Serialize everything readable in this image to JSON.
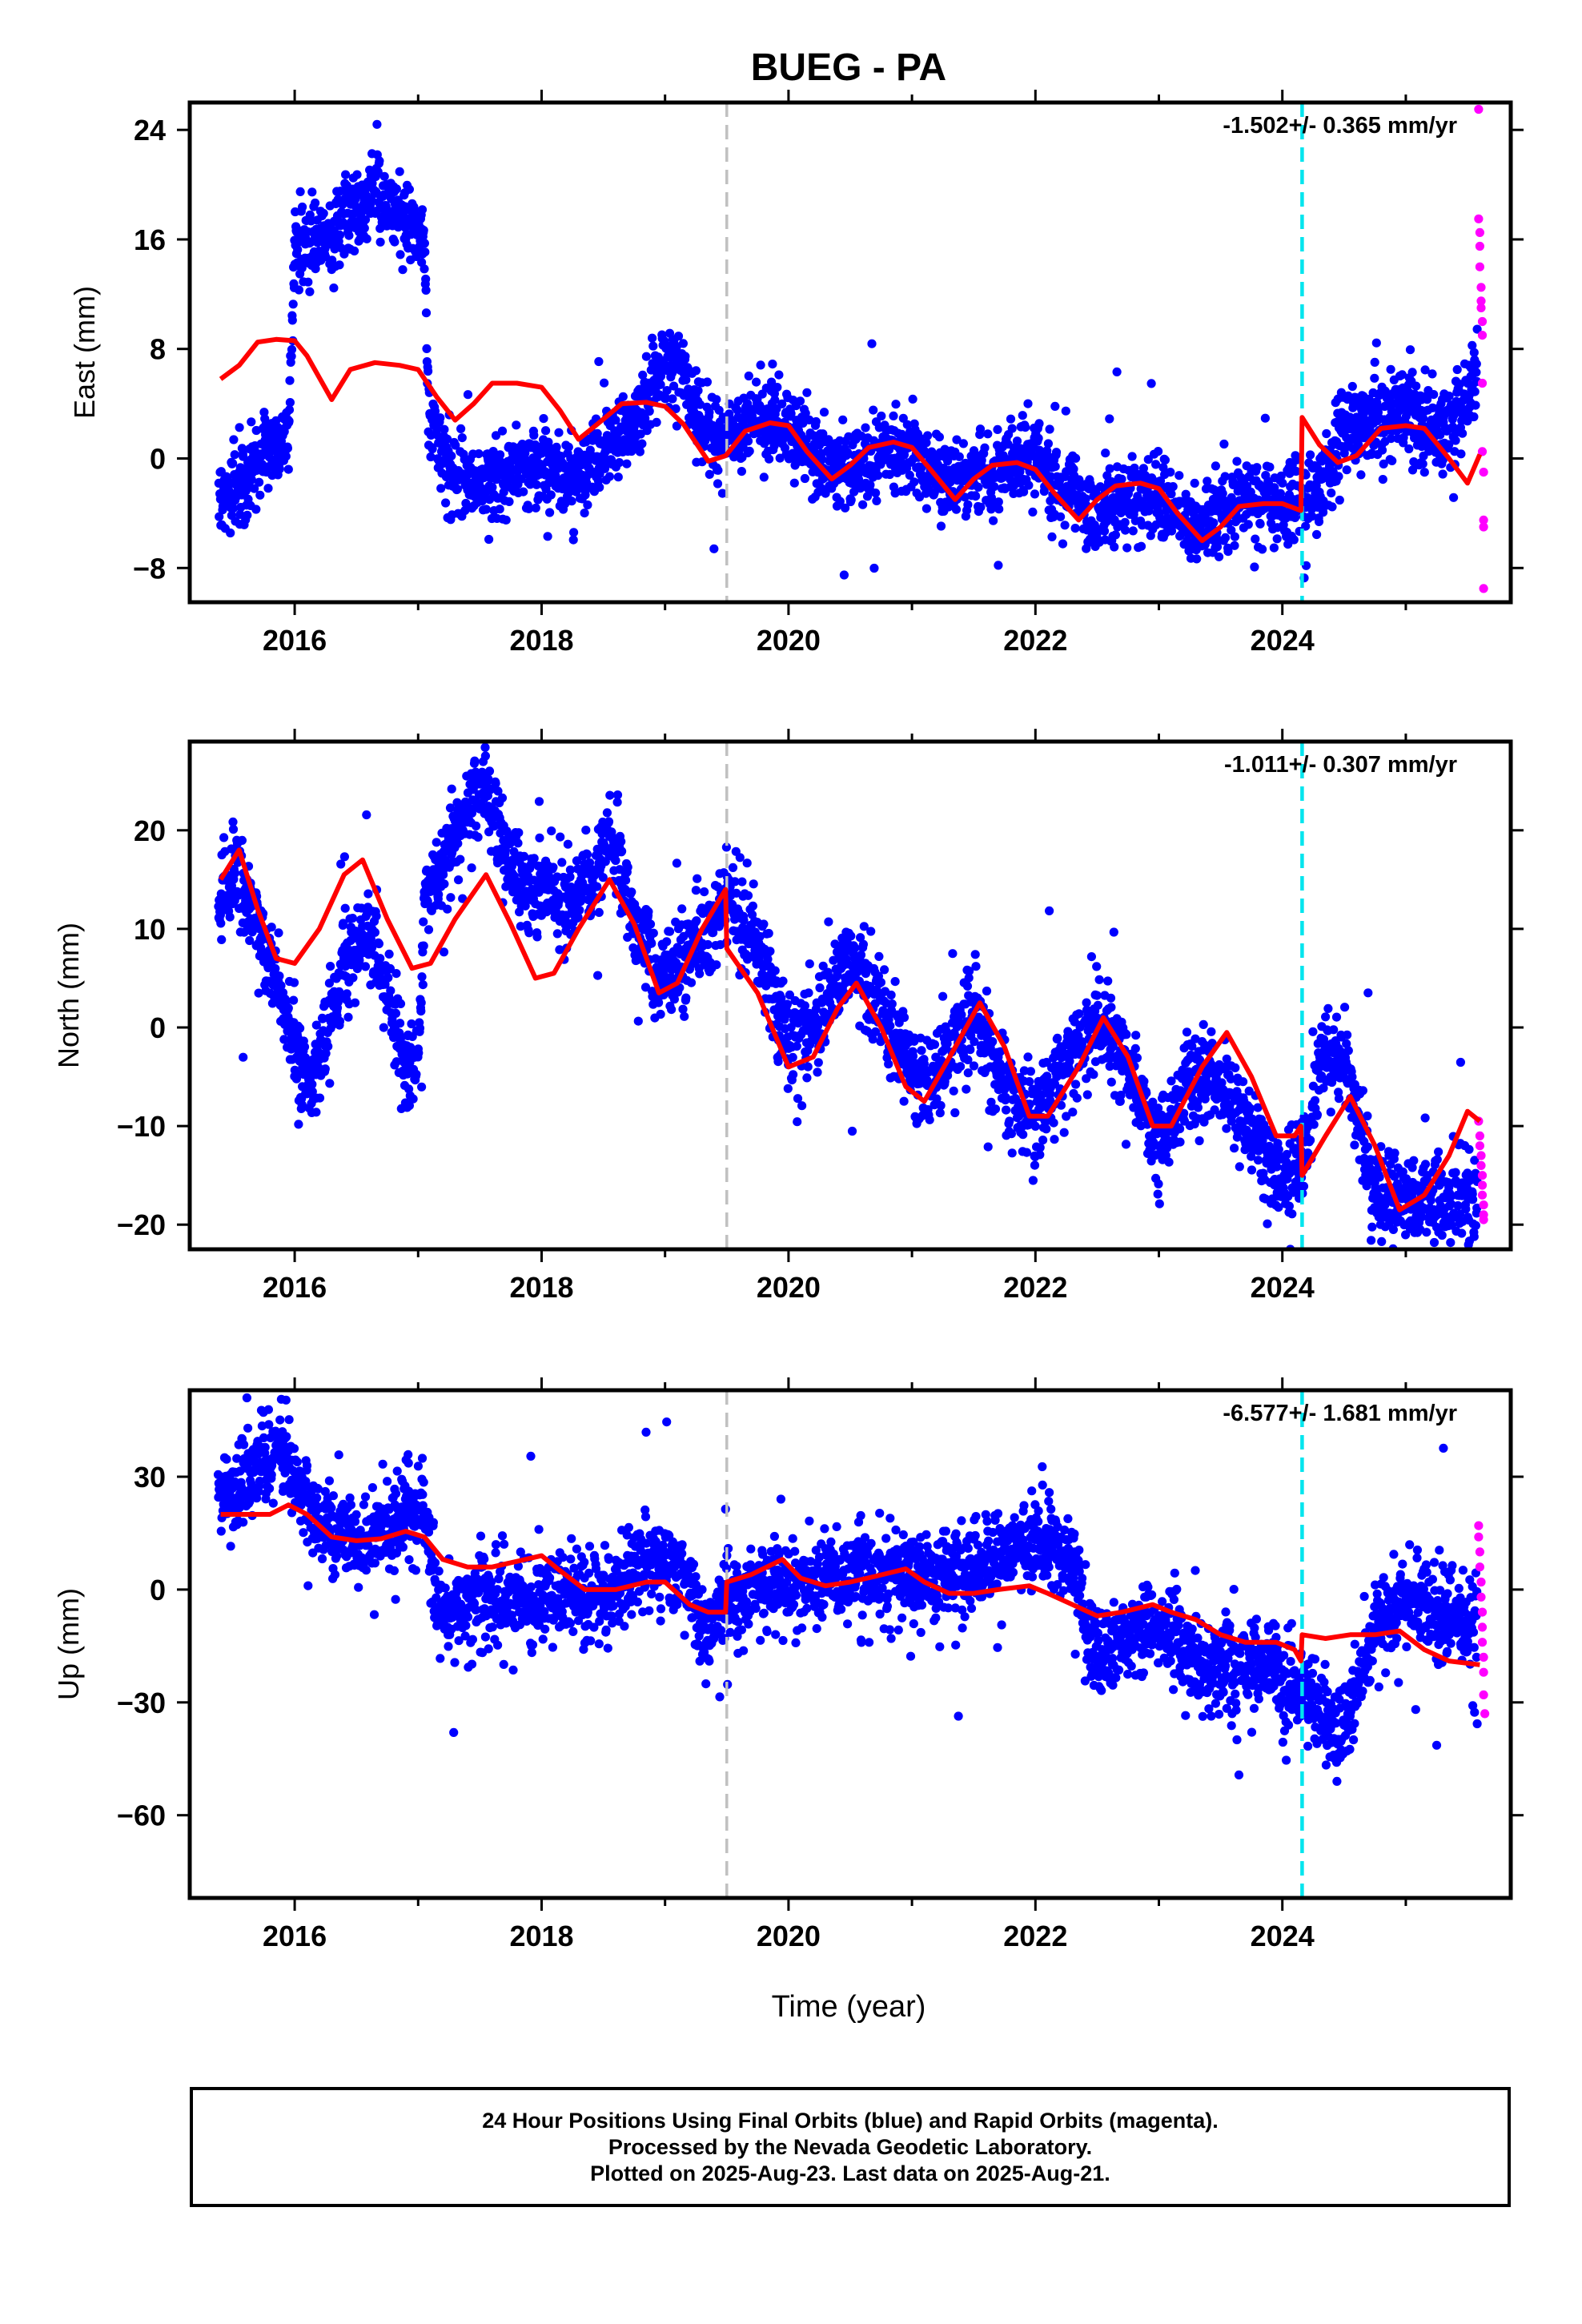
{
  "title": "BUEG - PA",
  "x_label": "Time (year)",
  "footer": {
    "line1": "24 Hour Positions Using Final Orbits (blue) and Rapid Orbits (magenta).",
    "line2": "Processed by the Nevada Geodetic Laboratory.",
    "line3": "Plotted on 2025-Aug-23. Last data on 2025-Aug-21."
  },
  "colors": {
    "final_orbits": "#0000ff",
    "rapid_orbits": "#ff00ff",
    "model_fit": "#ff0000",
    "antenna_change": "#c0c0c0",
    "equipment_change": "#00e5ee"
  },
  "chart_data": [
    {
      "type": "scatter",
      "component": "east",
      "ylabel": "East (mm)",
      "rate_text": "-1.502+/- 0.365 mm/yr",
      "xlim": [
        2015.15,
        2025.85
      ],
      "ylim": [
        -10.5,
        26
      ],
      "yticks": [
        -8,
        0,
        8,
        16,
        24
      ],
      "xticks": [
        2016,
        2018,
        2020,
        2022,
        2024
      ],
      "vlines": [
        {
          "x": 2019.5,
          "kind": "antenna_change"
        },
        {
          "x": 2024.16,
          "kind": "equipment_change"
        }
      ],
      "final_orbits_profile": {
        "x": [
          2015.38,
          2015.55,
          2015.75,
          2015.95,
          2016.0,
          2016.1,
          2016.3,
          2016.5,
          2016.65,
          2016.85,
          2017.05,
          2017.08,
          2017.25,
          2017.5,
          2017.75,
          2018.0,
          2018.25,
          2018.5,
          2018.75,
          2019.0,
          2019.15,
          2019.3,
          2019.5,
          2019.75,
          2020.0,
          2020.25,
          2020.5,
          2020.75,
          2021.0,
          2021.25,
          2021.5,
          2021.75,
          2022.0,
          2022.25,
          2022.5,
          2022.75,
          2023.0,
          2023.25,
          2023.5,
          2023.75,
          2024.0,
          2024.16,
          2024.3,
          2024.5,
          2024.75,
          2025.0,
          2025.25,
          2025.5,
          2025.58
        ],
        "y": [
          -3,
          -2,
          0.5,
          1,
          15,
          16,
          16.5,
          18,
          19.5,
          18,
          16,
          3.5,
          -1,
          -2,
          -1,
          -0.5,
          -1.5,
          0.5,
          3,
          7,
          7,
          2,
          1,
          3,
          2.5,
          0,
          -1,
          0.5,
          0.5,
          -1.5,
          -1,
          -0.5,
          0.5,
          -2.5,
          -4,
          -3,
          -2.5,
          -5.5,
          -4,
          -3,
          -3,
          -3.5,
          -2,
          2,
          3,
          3.5,
          2,
          4,
          7.5
        ],
        "spread": 1.8
      },
      "rapid_orbits": {
        "x": [
          2025.59,
          2025.59,
          2025.6,
          2025.6,
          2025.6,
          2025.61,
          2025.61,
          2025.61,
          2025.62,
          2025.62,
          2025.62,
          2025.62,
          2025.63,
          2025.63,
          2025.63,
          2025.63
        ],
        "y": [
          25.5,
          17.5,
          16.5,
          15.5,
          14,
          12.5,
          11.5,
          11,
          10,
          9,
          5.5,
          0.5,
          -1,
          -4.5,
          -5,
          -9.5
        ]
      },
      "model_fit": {
        "x": [
          2015.4,
          2015.55,
          2015.7,
          2015.85,
          2016.0,
          2016.1,
          2016.3,
          2016.45,
          2016.65,
          2016.85,
          2017.0,
          2017.15,
          2017.3,
          2017.45,
          2017.6,
          2017.8,
          2018.0,
          2018.15,
          2018.3,
          2018.45,
          2018.65,
          2018.85,
          2019.0,
          2019.15,
          2019.35,
          2019.49,
          2019.5,
          2019.65,
          2019.85,
          2020.0,
          2020.15,
          2020.35,
          2020.5,
          2020.65,
          2020.85,
          2021.0,
          2021.15,
          2021.35,
          2021.5,
          2021.65,
          2021.85,
          2022.0,
          2022.15,
          2022.35,
          2022.5,
          2022.65,
          2022.85,
          2023.0,
          2023.15,
          2023.35,
          2023.5,
          2023.65,
          2023.85,
          2024.0,
          2024.15,
          2024.16,
          2024.3,
          2024.45,
          2024.6,
          2024.8,
          2025.0,
          2025.15,
          2025.35,
          2025.5,
          2025.6
        ],
        "y": [
          5.8,
          6.8,
          8.5,
          8.7,
          8.6,
          7.5,
          4.3,
          6.5,
          7,
          6.8,
          6.5,
          4.5,
          2.8,
          4,
          5.5,
          5.5,
          5.2,
          3.5,
          1.4,
          2.5,
          4,
          4.1,
          3.8,
          2.5,
          -0.2,
          0.2,
          0.3,
          2,
          2.6,
          2.4,
          0.5,
          -1.5,
          -0.5,
          0.8,
          1.2,
          0.8,
          -0.8,
          -3,
          -1.5,
          -0.5,
          -0.3,
          -0.8,
          -2.5,
          -4.5,
          -3,
          -2,
          -1.8,
          -2.2,
          -4,
          -6,
          -5,
          -3.5,
          -3.3,
          -3.3,
          -3.8,
          3,
          1,
          -0.3,
          0.2,
          2.2,
          2.4,
          2.2,
          0,
          -1.8,
          0.3
        ]
      }
    },
    {
      "type": "scatter",
      "component": "north",
      "ylabel": "North (mm)",
      "rate_text": "-1.011+/- 0.307 mm/yr",
      "xlim": [
        2015.15,
        2025.85
      ],
      "ylim": [
        -22.5,
        29
      ],
      "yticks": [
        -20,
        -10,
        0,
        10,
        20
      ],
      "xticks": [
        2016,
        2018,
        2020,
        2022,
        2024
      ],
      "vlines": [
        {
          "x": 2019.5,
          "kind": "antenna_change"
        },
        {
          "x": 2024.16,
          "kind": "equipment_change"
        }
      ],
      "final_orbits_profile": {
        "x": [
          2015.38,
          2015.5,
          2015.7,
          2015.9,
          2016.0,
          2016.15,
          2016.4,
          2016.6,
          2016.75,
          2016.9,
          2017.0,
          2017.05,
          2017.25,
          2017.55,
          2017.75,
          2017.95,
          2018.2,
          2018.4,
          2018.55,
          2018.75,
          2018.95,
          2019.15,
          2019.35,
          2019.5,
          2019.75,
          2020.0,
          2020.25,
          2020.5,
          2020.75,
          2021.0,
          2021.25,
          2021.5,
          2021.75,
          2022.0,
          2022.25,
          2022.5,
          2022.75,
          2023.0,
          2023.25,
          2023.5,
          2023.75,
          2024.0,
          2024.16,
          2024.3,
          2024.5,
          2024.75,
          2025.0,
          2025.25,
          2025.5,
          2025.58
        ],
        "y": [
          12,
          16,
          10,
          3,
          -3,
          -5,
          6,
          10,
          4,
          -3,
          -4,
          13,
          18,
          25,
          16,
          14,
          13,
          14,
          20,
          11,
          5,
          7,
          10,
          14,
          8,
          -1,
          1,
          6.5,
          2,
          -5,
          -4,
          2,
          -6,
          -9,
          -4,
          1,
          -4,
          -12,
          -5,
          -6,
          -10,
          -16,
          -14,
          -4,
          -3,
          -16,
          -18,
          -18,
          -17,
          -17
        ],
        "spread": 2.8
      },
      "rapid_orbits": {
        "x": [
          2025.59,
          2025.6,
          2025.6,
          2025.61,
          2025.61,
          2025.62,
          2025.62,
          2025.62,
          2025.63,
          2025.63,
          2025.63
        ],
        "y": [
          -9.5,
          -11,
          -12,
          -13,
          -14,
          -15,
          -16,
          -17,
          -18,
          -19,
          -19.5
        ]
      },
      "model_fit": {
        "x": [
          2015.4,
          2015.55,
          2015.7,
          2015.85,
          2016.0,
          2016.2,
          2016.4,
          2016.55,
          2016.75,
          2016.95,
          2017.1,
          2017.3,
          2017.55,
          2017.75,
          2017.95,
          2018.1,
          2018.3,
          2018.55,
          2018.75,
          2018.95,
          2019.1,
          2019.3,
          2019.49,
          2019.5,
          2019.75,
          2020.0,
          2020.2,
          2020.4,
          2020.55,
          2020.75,
          2020.95,
          2021.1,
          2021.35,
          2021.55,
          2021.75,
          2021.95,
          2022.1,
          2022.35,
          2022.55,
          2022.75,
          2022.95,
          2023.1,
          2023.35,
          2023.55,
          2023.75,
          2023.95,
          2024.1,
          2024.15,
          2024.16,
          2024.35,
          2024.55,
          2024.75,
          2024.95,
          2025.15,
          2025.35,
          2025.5,
          2025.6
        ],
        "y": [
          15,
          18,
          12,
          7,
          6.5,
          10,
          15.5,
          17,
          11,
          6,
          6.5,
          11,
          15.5,
          10.5,
          5,
          5.5,
          10,
          15,
          10.5,
          3.5,
          4.5,
          10,
          14,
          8,
          3.5,
          -4,
          -3,
          2,
          4.5,
          0,
          -6,
          -7.5,
          -2,
          2.5,
          -2,
          -9,
          -9,
          -4,
          1,
          -3,
          -10,
          -10,
          -4,
          -0.5,
          -5,
          -11,
          -11,
          -10,
          -15,
          -11,
          -7,
          -12,
          -18.5,
          -17,
          -13,
          -8.5,
          -9.5
        ]
      }
    },
    {
      "type": "scatter",
      "component": "up",
      "ylabel": "Up (mm)",
      "rate_text": "-6.577+/- 1.681 mm/yr",
      "xlim": [
        2015.15,
        2025.85
      ],
      "ylim": [
        -82,
        53
      ],
      "yticks": [
        -60,
        -30,
        0,
        30
      ],
      "xticks": [
        2016,
        2018,
        2020,
        2022,
        2024
      ],
      "vlines": [
        {
          "x": 2019.5,
          "kind": "antenna_change"
        },
        {
          "x": 2024.16,
          "kind": "equipment_change"
        }
      ],
      "final_orbits_profile": {
        "x": [
          2015.38,
          2015.6,
          2015.9,
          2016.05,
          2016.3,
          2016.6,
          2016.9,
          2017.05,
          2017.15,
          2017.5,
          2018.0,
          2018.5,
          2018.9,
          2019.1,
          2019.3,
          2019.5,
          2020.0,
          2020.5,
          2021.0,
          2021.5,
          2021.9,
          2022.3,
          2022.45,
          2022.6,
          2022.9,
          2023.15,
          2023.35,
          2023.6,
          2023.9,
          2024.1,
          2024.16,
          2024.35,
          2024.5,
          2024.75,
          2025.0,
          2025.3,
          2025.55,
          2025.58
        ],
        "y": [
          25,
          30,
          37,
          25,
          16,
          13,
          21,
          22,
          -5,
          -3,
          -2,
          -2,
          10,
          5,
          -10,
          -2,
          2,
          4,
          3,
          5,
          12,
          10,
          -15,
          -18,
          -10,
          -12,
          -22,
          -20,
          -20,
          -28,
          -25,
          -35,
          -38,
          -10,
          -3,
          -8,
          -8,
          -5
        ],
        "spread": 7
      },
      "rapid_orbits": {
        "x": [
          2025.59,
          2025.59,
          2025.6,
          2025.6,
          2025.61,
          2025.61,
          2025.62,
          2025.62,
          2025.62,
          2025.63,
          2025.63,
          2025.63,
          2025.64
        ],
        "y": [
          17,
          14,
          10,
          6,
          2,
          -2,
          -6,
          -10,
          -14,
          -18,
          -22,
          -28,
          -33
        ]
      },
      "model_fit": {
        "x": [
          2015.4,
          2015.6,
          2015.8,
          2015.95,
          2016.1,
          2016.3,
          2016.5,
          2016.7,
          2016.9,
          2017.05,
          2017.2,
          2017.4,
          2017.6,
          2017.8,
          2018.0,
          2018.15,
          2018.35,
          2018.6,
          2018.85,
          2019.0,
          2019.2,
          2019.35,
          2019.49,
          2019.5,
          2019.7,
          2019.95,
          2020.1,
          2020.3,
          2020.5,
          2020.7,
          2020.95,
          2021.1,
          2021.3,
          2021.5,
          2021.7,
          2021.95,
          2022.1,
          2022.3,
          2022.5,
          2022.7,
          2022.95,
          2023.1,
          2023.3,
          2023.5,
          2023.7,
          2023.95,
          2024.1,
          2024.15,
          2024.16,
          2024.35,
          2024.55,
          2024.75,
          2024.95,
          2025.15,
          2025.35,
          2025.6
        ],
        "y": [
          20,
          20,
          20,
          22.5,
          20,
          14,
          13,
          13.5,
          15.5,
          14,
          8,
          6,
          6,
          7.5,
          9,
          5,
          0,
          0,
          2,
          2,
          -4,
          -6,
          -6,
          2,
          4,
          8,
          3,
          1,
          2,
          3.5,
          5.5,
          2,
          -1,
          -1,
          0,
          1,
          -1,
          -4,
          -7,
          -6,
          -4,
          -6,
          -8,
          -12,
          -14,
          -14,
          -16,
          -19,
          -12,
          -13,
          -12,
          -12,
          -11,
          -16,
          -19,
          -20
        ]
      }
    }
  ]
}
